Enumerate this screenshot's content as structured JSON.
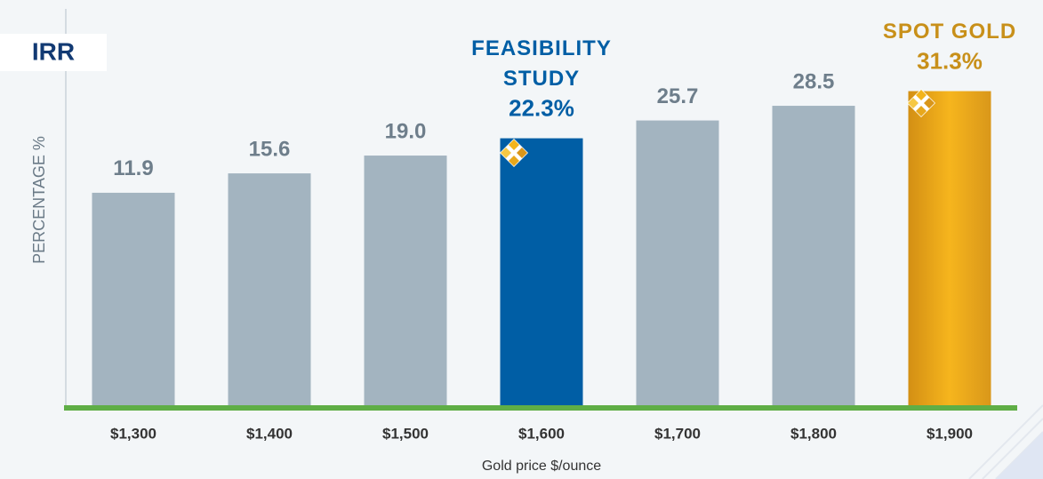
{
  "chart_data": {
    "type": "bar",
    "badge": "IRR",
    "y_label": "PERCENTAGE %",
    "x_label": "Gold price $/ounce",
    "categories": [
      "$1,300",
      "$1,400",
      "$1,500",
      "$1,600",
      "$1,700",
      "$1,800",
      "$1,900"
    ],
    "values": [
      11.9,
      15.6,
      19.0,
      22.3,
      25.7,
      28.5,
      31.3
    ],
    "value_labels": [
      "11.9",
      "15.6",
      "19.0",
      "22.3%",
      "25.7",
      "28.5",
      "31.3%"
    ],
    "annotations": [
      null,
      null,
      null,
      [
        "FEASIBILITY",
        "STUDY"
      ],
      null,
      null,
      [
        "SPOT GOLD"
      ]
    ],
    "colors": [
      "#a3b4c0",
      "#a3b4c0",
      "#a3b4c0",
      "#005ea5",
      "#a3b4c0",
      "#a3b4c0",
      "#e8a81c"
    ],
    "label_colors": [
      "#6e7e8b",
      "#6e7e8b",
      "#6e7e8b",
      "#005ea5",
      "#6e7e8b",
      "#6e7e8b",
      "#c8901a"
    ],
    "ylim": [
      -29,
      47
    ]
  }
}
